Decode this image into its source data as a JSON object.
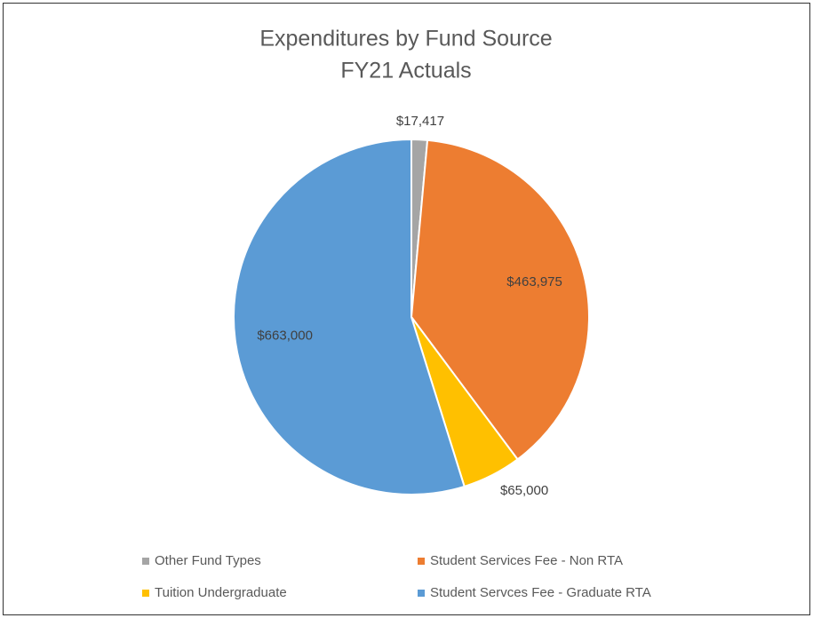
{
  "chart_data": {
    "type": "pie",
    "title": "Expenditures by Fund Source",
    "subtitle": "FY21 Actuals",
    "categories": [
      "Other Fund Types",
      "Student Services Fee - Non RTA",
      "Tuition Undergraduate",
      "Student Servces Fee - Graduate RTA"
    ],
    "values": [
      17417,
      463975,
      65000,
      663000
    ],
    "value_labels": [
      "$17,417",
      "$463,975",
      "$65,000",
      "$663,000"
    ],
    "colors": [
      "#a5a5a5",
      "#ed7d31",
      "#ffc000",
      "#5b9bd5"
    ],
    "legend": "bottom"
  }
}
